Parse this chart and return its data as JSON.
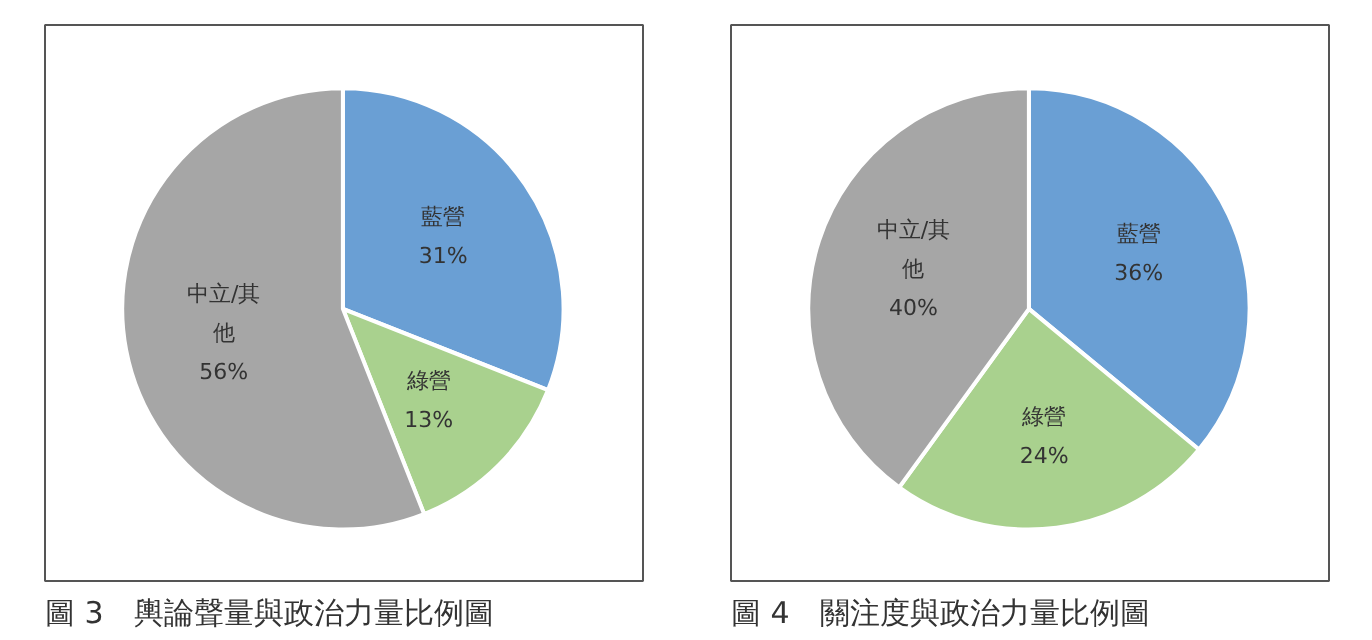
{
  "chart_data": [
    {
      "type": "pie",
      "title": "圖 3　輿論聲量與政治力量比例圖",
      "categories": [
        "藍營",
        "綠營",
        "中立/其他"
      ],
      "values": [
        31,
        13,
        56
      ],
      "value_labels": [
        "31%",
        "13%",
        "56%"
      ],
      "colors": [
        "#6a9fd4",
        "#a9d18e",
        "#a6a6a6"
      ],
      "legend": false
    },
    {
      "type": "pie",
      "title": "圖 4　關注度與政治力量比例圖",
      "categories": [
        "藍營",
        "綠營",
        "中立/其他"
      ],
      "values": [
        36,
        24,
        40
      ],
      "value_labels": [
        "36%",
        "24%",
        "40%"
      ],
      "colors": [
        "#6a9fd4",
        "#a9d18e",
        "#a6a6a6"
      ],
      "legend": false
    }
  ]
}
